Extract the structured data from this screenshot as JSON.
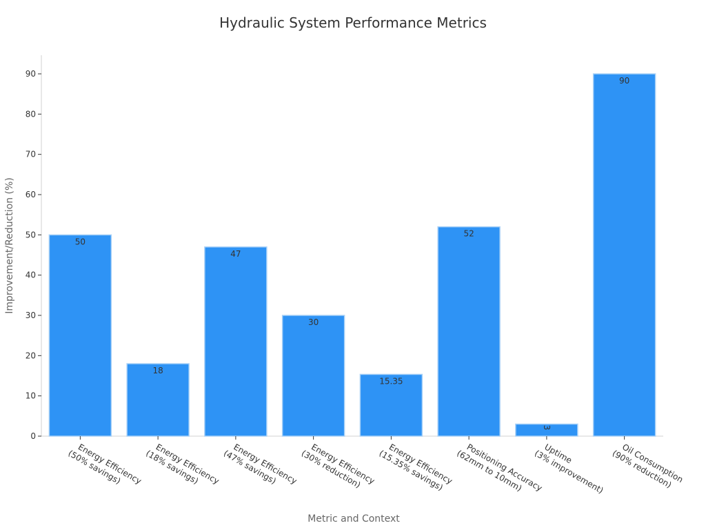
{
  "chart_data": {
    "type": "bar",
    "title": "Hydraulic System Performance Metrics",
    "xlabel": "Metric and Context",
    "ylabel": "Improvement/Reduction (%)",
    "ylim": [
      0,
      95
    ],
    "yticks": [
      0,
      10,
      20,
      30,
      40,
      50,
      60,
      70,
      80,
      90
    ],
    "grid": false,
    "legend": null,
    "bar_color": "#2e93f5",
    "categories": [
      [
        "Energy Efficiency",
        "(50% savings)"
      ],
      [
        "Energy Efficiency",
        "(18% savings)"
      ],
      [
        "Energy Efficiency",
        "(47% savings)"
      ],
      [
        "Energy Efficiency",
        "(30% reduction)"
      ],
      [
        "Energy Efficiency",
        "(15.35% savings)"
      ],
      [
        "Positioning Accuracy",
        "(62mm to 10mm)"
      ],
      [
        "Uptime",
        "(3% improvement)"
      ],
      [
        "Oil Consumption",
        "(90% reduction)"
      ]
    ],
    "values": [
      50,
      18,
      47,
      30,
      15.35,
      52,
      3,
      90
    ],
    "data_labels": [
      "50",
      "18",
      "47",
      "30",
      "15.35",
      "52",
      "3",
      "90"
    ]
  }
}
